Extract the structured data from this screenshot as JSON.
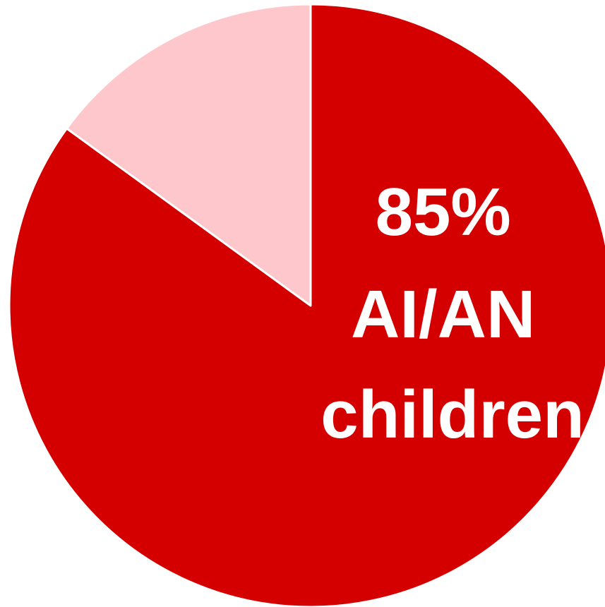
{
  "chart_data": {
    "type": "pie",
    "categories": [
      "AI/AN children",
      ""
    ],
    "values": [
      85,
      15
    ],
    "label_lines": [
      "85%",
      "AI/AN",
      "children"
    ],
    "colors": [
      "#d40000",
      "#fec7cb"
    ],
    "legend": "none"
  }
}
